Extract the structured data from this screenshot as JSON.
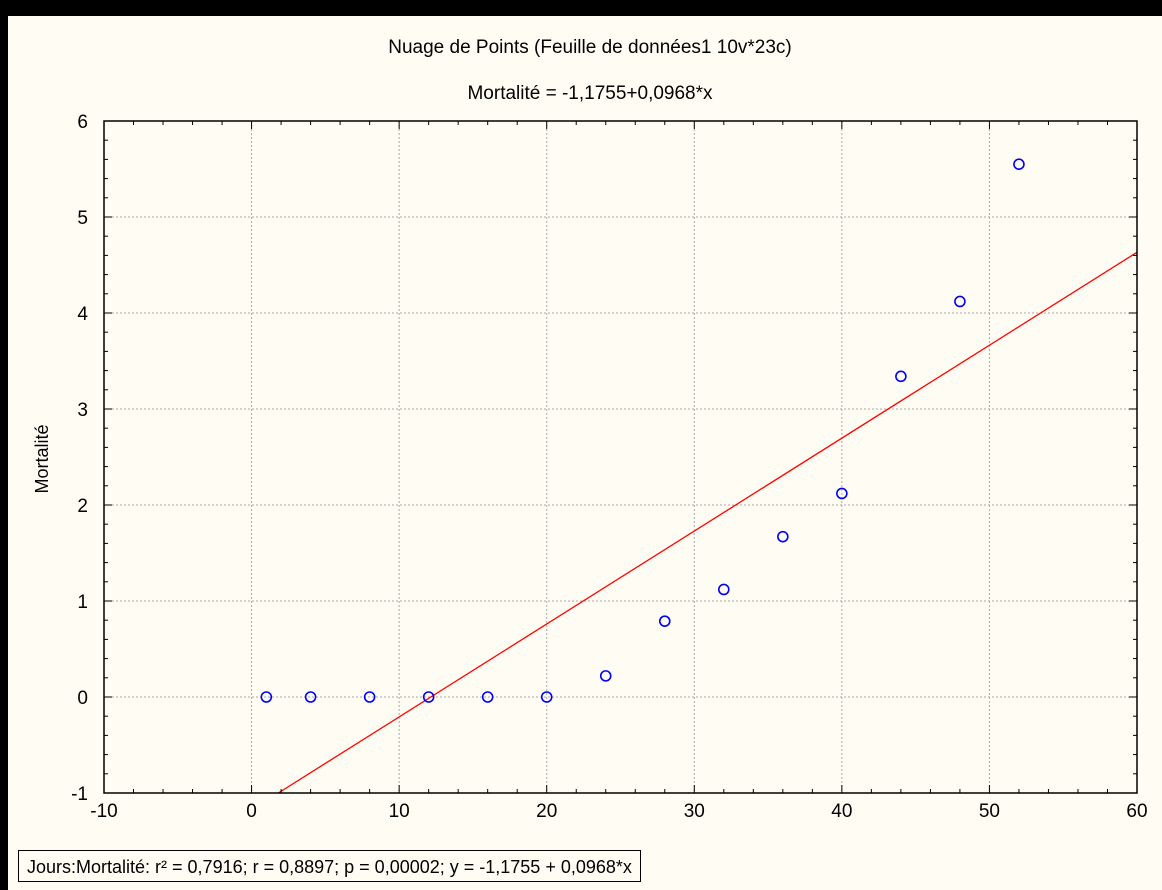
{
  "chart_data": {
    "type": "scatter",
    "title": "Nuage de Points (Feuille de données1 10v*23c)",
    "subtitle": "Mortalité = -1,1755+0,0968*x",
    "xlabel": "",
    "ylabel": "Mortalité",
    "xlim": [
      -10,
      60
    ],
    "ylim": [
      -1,
      6
    ],
    "x_ticks": [
      -10,
      0,
      10,
      20,
      30,
      40,
      50,
      60
    ],
    "y_ticks": [
      -1,
      0,
      1,
      2,
      3,
      4,
      5,
      6
    ],
    "grid": true,
    "series": [
      {
        "x": [
          1,
          4,
          8,
          12,
          16,
          20,
          24,
          28,
          32,
          36,
          40,
          44,
          48,
          52
        ],
        "y": [
          0,
          0,
          0,
          0,
          0,
          0,
          0.22,
          0.79,
          1.12,
          1.67,
          2.12,
          3.34,
          4.12,
          5.55
        ],
        "marker": "circle-open",
        "color": "#0000ff"
      }
    ],
    "regression": {
      "intercept": -1.1755,
      "slope": 0.0968,
      "color": "#ff0000"
    },
    "legend_text": "Jours:Mortalité:  r² = 0,7916;  r = 0,8897; p = 0,00002;  y = -1,1755 + 0,0968*x",
    "legend_position": "bottom-left"
  }
}
